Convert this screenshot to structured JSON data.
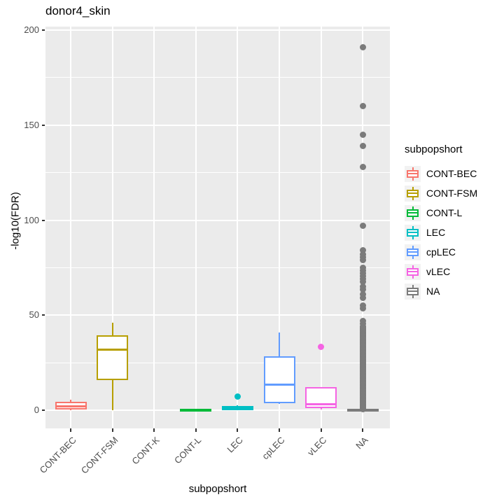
{
  "title": "donor4_skin",
  "chart_data": {
    "type": "boxplot",
    "title": "donor4_skin",
    "xlabel": "subpopshort",
    "ylabel": "-log10(FDR)",
    "ylim": [
      -10,
      202
    ],
    "yticks": [
      0,
      50,
      100,
      150,
      200
    ],
    "yticks_minor": [
      25,
      75,
      125,
      175
    ],
    "grid": "white major+minor on grey panel",
    "panel_bg": "#EBEBEB",
    "categories": [
      "CONT-BEC",
      "CONT-FSM",
      "CONT-K",
      "CONT-L",
      "LEC",
      "cpLEC",
      "vLEC",
      "NA"
    ],
    "boxes": [
      {
        "category": "CONT-BEC",
        "color": "#F8766D",
        "whisker_low": 0,
        "q1": 0.5,
        "median": 2,
        "q3": 4.4,
        "whisker_high": 5.5,
        "outliers": []
      },
      {
        "category": "CONT-FSM",
        "color": "#B79F00",
        "whisker_low": 0,
        "q1": 16,
        "median": 32,
        "q3": 39.5,
        "whisker_high": 46,
        "outliers": []
      },
      {
        "category": "CONT-K",
        "empty": true
      },
      {
        "category": "CONT-L",
        "color": "#00BA38",
        "whisker_low": 0,
        "q1": 0,
        "median": 0.2,
        "q3": 0.6,
        "whisker_high": 0.8,
        "outliers": []
      },
      {
        "category": "LEC",
        "color": "#00BFC4",
        "whisker_low": 0,
        "q1": 0,
        "median": 0.8,
        "q3": 2.2,
        "whisker_high": 2.4,
        "outliers": [
          7
        ]
      },
      {
        "category": "cpLEC",
        "color": "#619CFF",
        "whisker_low": 3.3,
        "q1": 3.7,
        "median": 13.4,
        "q3": 28.3,
        "whisker_high": 41,
        "outliers": []
      },
      {
        "category": "vLEC",
        "color": "#F564E3",
        "whisker_low": 0.3,
        "q1": 1.2,
        "median": 3,
        "q3": 12,
        "whisker_high": 12.2,
        "outliers": [
          33.5
        ]
      },
      {
        "category": "NA",
        "color": "#7B7B7B",
        "whisker_low": 0,
        "q1": 0,
        "median": 0.2,
        "q3": 0.6,
        "whisker_high": 0.8,
        "outliers": [
          191,
          160,
          145,
          139,
          128,
          97,
          84,
          82,
          80.5,
          79,
          75,
          73.5,
          72,
          70.5,
          69,
          67.5,
          65,
          63.5,
          61,
          59,
          55,
          53.5,
          47,
          45.5
        ],
        "dense_outliers": {
          "min": 0.5,
          "max": 44,
          "count": 95
        }
      }
    ],
    "outlier_color_follows_box": true,
    "legend": {
      "title": "subpopshort",
      "position": "right",
      "entries": [
        {
          "label": "CONT-BEC",
          "color": "#F8766D"
        },
        {
          "label": "CONT-FSM",
          "color": "#B79F00"
        },
        {
          "label": "CONT-L",
          "color": "#00BA38"
        },
        {
          "label": "LEC",
          "color": "#00BFC4"
        },
        {
          "label": "cpLEC",
          "color": "#619CFF"
        },
        {
          "label": "vLEC",
          "color": "#F564E3"
        },
        {
          "label": "NA",
          "color": "#7B7B7B"
        }
      ]
    }
  }
}
